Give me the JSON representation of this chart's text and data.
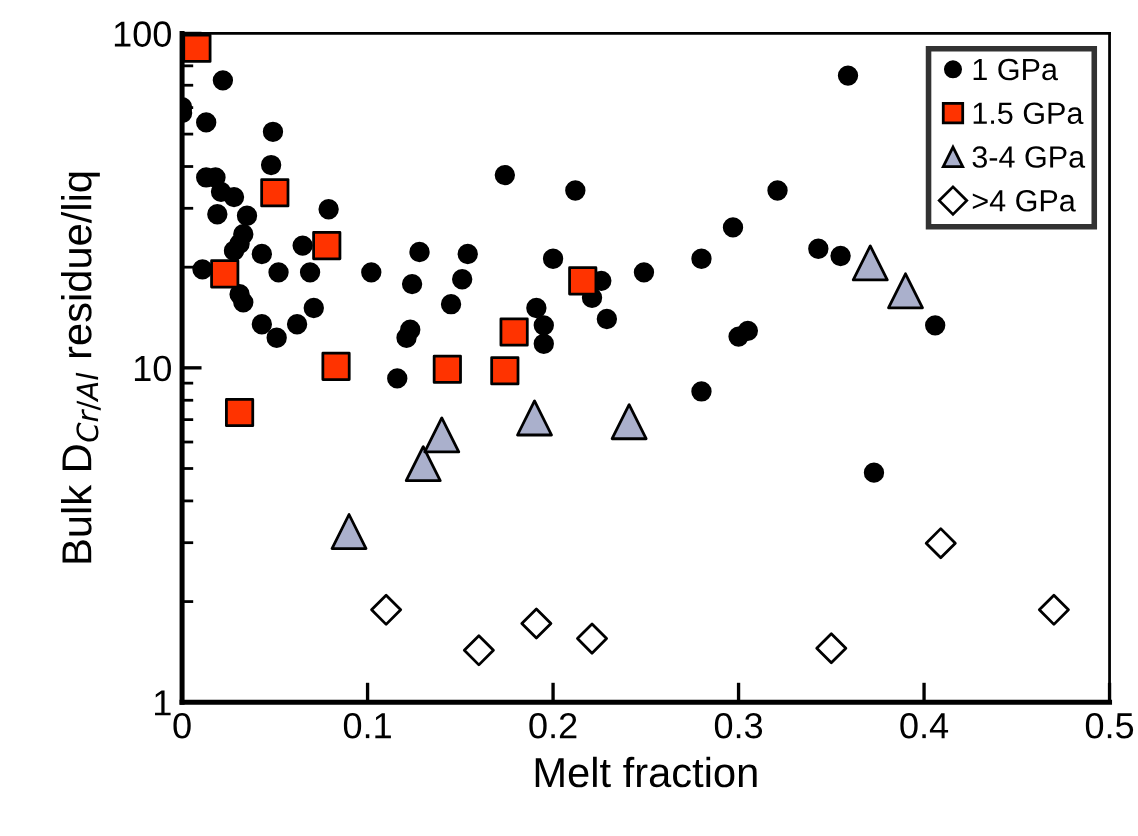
{
  "chart_data": {
    "type": "scatter",
    "xlabel": "Melt fraction",
    "ylabel": "Bulk D$_{Cr/Al}$ residue/liq",
    "log": "y",
    "xlim": [
      0,
      0.5
    ],
    "ylim": [
      1,
      100
    ],
    "xticks": [
      0,
      0.1,
      0.2,
      0.3,
      0.4,
      0.5
    ],
    "yticks": [
      1,
      10,
      100
    ],
    "grid": false,
    "legend": "top right",
    "series": [
      {
        "name": "1 GPa",
        "color": "#000000",
        "marker": "circle",
        "x": [
          0.022,
          0.0,
          0.0,
          0.013,
          0.049,
          0.048,
          0.013,
          0.018,
          0.021,
          0.028,
          0.019,
          0.035,
          0.079,
          0.033,
          0.031,
          0.028,
          0.043,
          0.065,
          0.128,
          0.154,
          0.011,
          0.052,
          0.069,
          0.102,
          0.031,
          0.033,
          0.124,
          0.151,
          0.145,
          0.071,
          0.043,
          0.062,
          0.051,
          0.123,
          0.121,
          0.116,
          0.174,
          0.212,
          0.321,
          0.297,
          0.2,
          0.28,
          0.249,
          0.226,
          0.221,
          0.191,
          0.229,
          0.195,
          0.195,
          0.3,
          0.305,
          0.28,
          0.359,
          0.343,
          0.355,
          0.406,
          0.373
        ],
        "values": [
          72.4,
          60.2,
          57.8,
          54.2,
          50.8,
          40.4,
          37.1,
          37.1,
          33.6,
          32.4,
          28.8,
          28.5,
          29.8,
          25.1,
          23.5,
          22.4,
          21.9,
          23.2,
          22.2,
          21.9,
          19.7,
          19.3,
          19.3,
          19.3,
          16.6,
          15.7,
          17.8,
          18.4,
          15.5,
          15.1,
          13.5,
          13.5,
          12.3,
          13.0,
          12.3,
          9.3,
          37.7,
          33.9,
          33.9,
          26.3,
          21.2,
          21.2,
          19.3,
          18.2,
          16.2,
          15.1,
          14.0,
          13.4,
          11.8,
          12.4,
          12.9,
          8.5,
          74.8,
          22.7,
          21.6,
          13.4,
          4.86
        ]
      },
      {
        "name": "1.5 GPa",
        "color": "#ff3300",
        "marker": "square",
        "x": [
          0.008,
          0.05,
          0.078,
          0.023,
          0.083,
          0.143,
          0.031,
          0.216,
          0.179,
          0.174
        ],
        "values": [
          90.3,
          33.4,
          23.2,
          19.1,
          10.1,
          9.9,
          7.35,
          18.2,
          12.8,
          9.8
        ]
      },
      {
        "name": "3-4 GPa",
        "color": "#aab0cc",
        "marker": "triangle",
        "x": [
          0.09,
          0.13,
          0.14,
          0.19,
          0.241,
          0.371,
          0.39
        ],
        "values": [
          3.24,
          5.17,
          6.3,
          7.08,
          6.9,
          20.6,
          17.0
        ]
      },
      {
        "name": ">4 GPa",
        "color": "#ffffff",
        "marker": "diamond",
        "x": [
          0.11,
          0.16,
          0.191,
          0.221,
          0.35,
          0.409,
          0.47
        ],
        "values": [
          1.89,
          1.43,
          1.72,
          1.55,
          1.45,
          2.99,
          1.89
        ]
      }
    ]
  }
}
